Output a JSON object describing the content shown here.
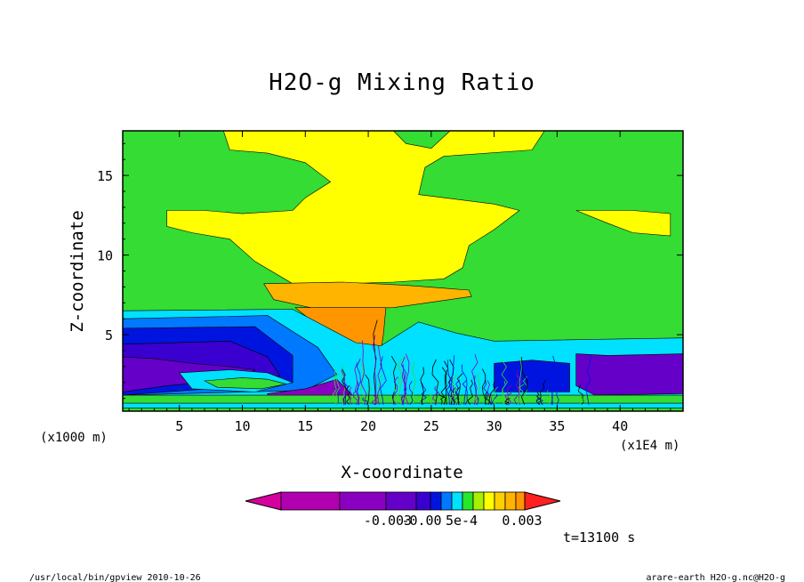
{
  "chart_data": {
    "type": "heatmap",
    "title": "H2O-g Mixing Ratio",
    "xlabel": "X-coordinate",
    "ylabel": "Z-coordinate",
    "x_unit": "(x1E4 m)",
    "y_unit": "(x1000 m)",
    "xlim": [
      0.5,
      45
    ],
    "ylim": [
      0.2,
      17.8
    ],
    "xticks": [
      5,
      10,
      15,
      20,
      25,
      30,
      35,
      40
    ],
    "yticks": [
      5,
      10,
      15
    ],
    "colorbar": {
      "colors": [
        "#d6009f",
        "#b000b0",
        "#8a00c0",
        "#6400c8",
        "#3a00d0",
        "#0014e0",
        "#0078ff",
        "#00e0ff",
        "#28e628",
        "#a8f000",
        "#ffff00",
        "#ffd000",
        "#ffb400",
        "#ff9600",
        "#ff2020"
      ],
      "tick_labels": [
        "-0.003",
        "-0.00",
        "5e-4",
        "0.003"
      ]
    },
    "regions": [
      {
        "name": "top-green",
        "color": "#34dc34",
        "polygon": [
          [
            0.5,
            17.8
          ],
          [
            45,
            17.8
          ],
          [
            45,
            0.2
          ],
          [
            0.5,
            0.2
          ]
        ]
      },
      {
        "name": "upper-yellow",
        "color": "#ffff00",
        "polygon": [
          [
            8.5,
            17.8
          ],
          [
            22,
            17.8
          ],
          [
            23,
            17
          ],
          [
            25,
            16.7
          ],
          [
            26.5,
            17.8
          ],
          [
            34,
            17.8
          ],
          [
            33,
            16.6
          ],
          [
            26,
            16.2
          ],
          [
            24.5,
            15.5
          ],
          [
            24,
            13.8
          ],
          [
            30,
            13.2
          ],
          [
            32,
            12.8
          ],
          [
            30,
            11.6
          ],
          [
            28,
            10.6
          ],
          [
            27.5,
            9.2
          ],
          [
            26,
            8.5
          ],
          [
            22,
            8.3
          ],
          [
            18,
            8.2
          ],
          [
            14,
            8.2
          ],
          [
            11,
            9.6
          ],
          [
            9,
            11
          ],
          [
            6,
            11.4
          ],
          [
            4,
            11.8
          ],
          [
            4,
            12.8
          ],
          [
            7,
            12.8
          ],
          [
            10,
            12.6
          ],
          [
            14,
            12.8
          ],
          [
            15,
            13.6
          ],
          [
            17,
            14.6
          ],
          [
            15,
            15.8
          ],
          [
            12,
            16.4
          ],
          [
            9,
            16.6
          ]
        ]
      },
      {
        "name": "right-yellow",
        "color": "#ffff00",
        "polygon": [
          [
            36.5,
            12.8
          ],
          [
            39,
            12
          ],
          [
            41,
            11.4
          ],
          [
            44,
            11.2
          ],
          [
            44,
            12.6
          ],
          [
            41,
            12.8
          ]
        ]
      },
      {
        "name": "orange-top",
        "color": "#ffb400",
        "polygon": [
          [
            11.7,
            8.2
          ],
          [
            18,
            8.3
          ],
          [
            23,
            8.1
          ],
          [
            28,
            7.8
          ],
          [
            28.2,
            7.4
          ],
          [
            22,
            6.7
          ],
          [
            16,
            6.6
          ],
          [
            12.5,
            7.2
          ]
        ]
      },
      {
        "name": "orange-core",
        "color": "#ff9600",
        "polygon": [
          [
            14.2,
            6.7
          ],
          [
            21.4,
            6.7
          ],
          [
            21.2,
            5
          ],
          [
            20.8,
            3
          ],
          [
            20.3,
            1.2
          ],
          [
            19.4,
            1.2
          ],
          [
            18.5,
            2.8
          ],
          [
            17.2,
            4.8
          ]
        ]
      },
      {
        "name": "cyan-band",
        "color": "#00e0ff",
        "polygon": [
          [
            0.5,
            6.5
          ],
          [
            14,
            6.6
          ],
          [
            19,
            4.5
          ],
          [
            21,
            4.3
          ],
          [
            24,
            5.8
          ],
          [
            27,
            5.1
          ],
          [
            30,
            4.6
          ],
          [
            45,
            4.8
          ],
          [
            45,
            1
          ],
          [
            0.5,
            1
          ]
        ]
      },
      {
        "name": "blue-band",
        "color": "#0078ff",
        "polygon": [
          [
            0.5,
            6
          ],
          [
            12,
            6.2
          ],
          [
            16,
            4.2
          ],
          [
            17.5,
            2.5
          ],
          [
            15,
            1.5
          ],
          [
            0.5,
            1.2
          ]
        ]
      },
      {
        "name": "dark-blue",
        "color": "#0014e0",
        "polygon": [
          [
            0.5,
            5.4
          ],
          [
            11,
            5.5
          ],
          [
            14,
            3.7
          ],
          [
            14,
            2
          ],
          [
            0.5,
            1.2
          ]
        ]
      },
      {
        "name": "indigo",
        "color": "#3a00d0",
        "polygon": [
          [
            0.5,
            4.4
          ],
          [
            9,
            4.6
          ],
          [
            12,
            3.6
          ],
          [
            13,
            2.4
          ],
          [
            8,
            2.4
          ],
          [
            0.5,
            1.6
          ]
        ]
      },
      {
        "name": "purple",
        "color": "#6400c8",
        "polygon": [
          [
            0.5,
            3.6
          ],
          [
            3,
            3.5
          ],
          [
            6,
            3.2
          ],
          [
            9,
            3
          ],
          [
            11,
            2.8
          ],
          [
            10,
            2.2
          ],
          [
            4,
            1.8
          ],
          [
            0.5,
            1.4
          ]
        ]
      },
      {
        "name": "cyan-lower",
        "color": "#00e0ff",
        "polygon": [
          [
            5,
            2.6
          ],
          [
            9,
            2.8
          ],
          [
            12,
            2.6
          ],
          [
            14,
            2
          ],
          [
            11,
            1.4
          ],
          [
            6,
            1.6
          ]
        ]
      },
      {
        "name": "green-lower",
        "color": "#34dc34",
        "polygon": [
          [
            7,
            2.1
          ],
          [
            10,
            2.3
          ],
          [
            12,
            2.2
          ],
          [
            13.5,
            1.9
          ],
          [
            11.5,
            1.6
          ],
          [
            8,
            1.7
          ]
        ]
      },
      {
        "name": "right-purple",
        "color": "#6400c8",
        "polygon": [
          [
            36.5,
            3.8
          ],
          [
            39,
            3.7
          ],
          [
            45,
            3.8
          ],
          [
            45,
            1.3
          ],
          [
            38,
            1.2
          ],
          [
            36.5,
            1.8
          ]
        ]
      },
      {
        "name": "right-blue",
        "color": "#0014e0",
        "polygon": [
          [
            30,
            3.2
          ],
          [
            33,
            3.4
          ],
          [
            36,
            3.2
          ],
          [
            36,
            1.4
          ],
          [
            30,
            1.4
          ]
        ]
      },
      {
        "name": "base-purple",
        "color": "#8a00c0",
        "polygon": [
          [
            12,
            1.3
          ],
          [
            15,
            1.6
          ],
          [
            17.5,
            2.2
          ],
          [
            19,
            1
          ],
          [
            22,
            0.5
          ],
          [
            12,
            0.4
          ]
        ]
      },
      {
        "name": "base-green",
        "color": "#34dc34",
        "polygon": [
          [
            0.5,
            1.2
          ],
          [
            45,
            1.2
          ],
          [
            45,
            0.2
          ],
          [
            0.5,
            0.2
          ]
        ]
      },
      {
        "name": "base-cyan",
        "color": "#00e0ff",
        "polygon": [
          [
            0.5,
            0.7
          ],
          [
            45,
            0.7
          ],
          [
            45,
            0.4
          ],
          [
            0.5,
            0.4
          ]
        ]
      }
    ]
  },
  "footer": {
    "time": "t=13100 s",
    "path": "/usr/local/bin/gpview  2010-10-26",
    "file": "arare-earth_H2O-g.nc@H2O-g"
  }
}
